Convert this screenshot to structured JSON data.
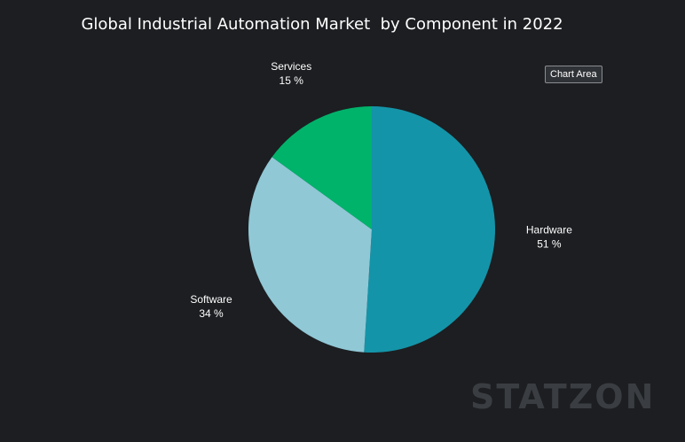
{
  "title": "Global Industrial Automation Market  by Component in 2022",
  "tooltip": "Chart Area",
  "watermark": "STATZON",
  "colors": {
    "background": "#1c1e21",
    "Hardware": "#1494a8",
    "Software": "#90c8d6",
    "Services": "#00b36b"
  },
  "chart_data": {
    "type": "pie",
    "title": "Global Industrial Automation Market  by Component in 2022",
    "categories": [
      "Hardware",
      "Software",
      "Services"
    ],
    "values": [
      51,
      34,
      15
    ],
    "labels": [
      "51 %",
      "34 %",
      "15 %"
    ],
    "unit": "%"
  }
}
